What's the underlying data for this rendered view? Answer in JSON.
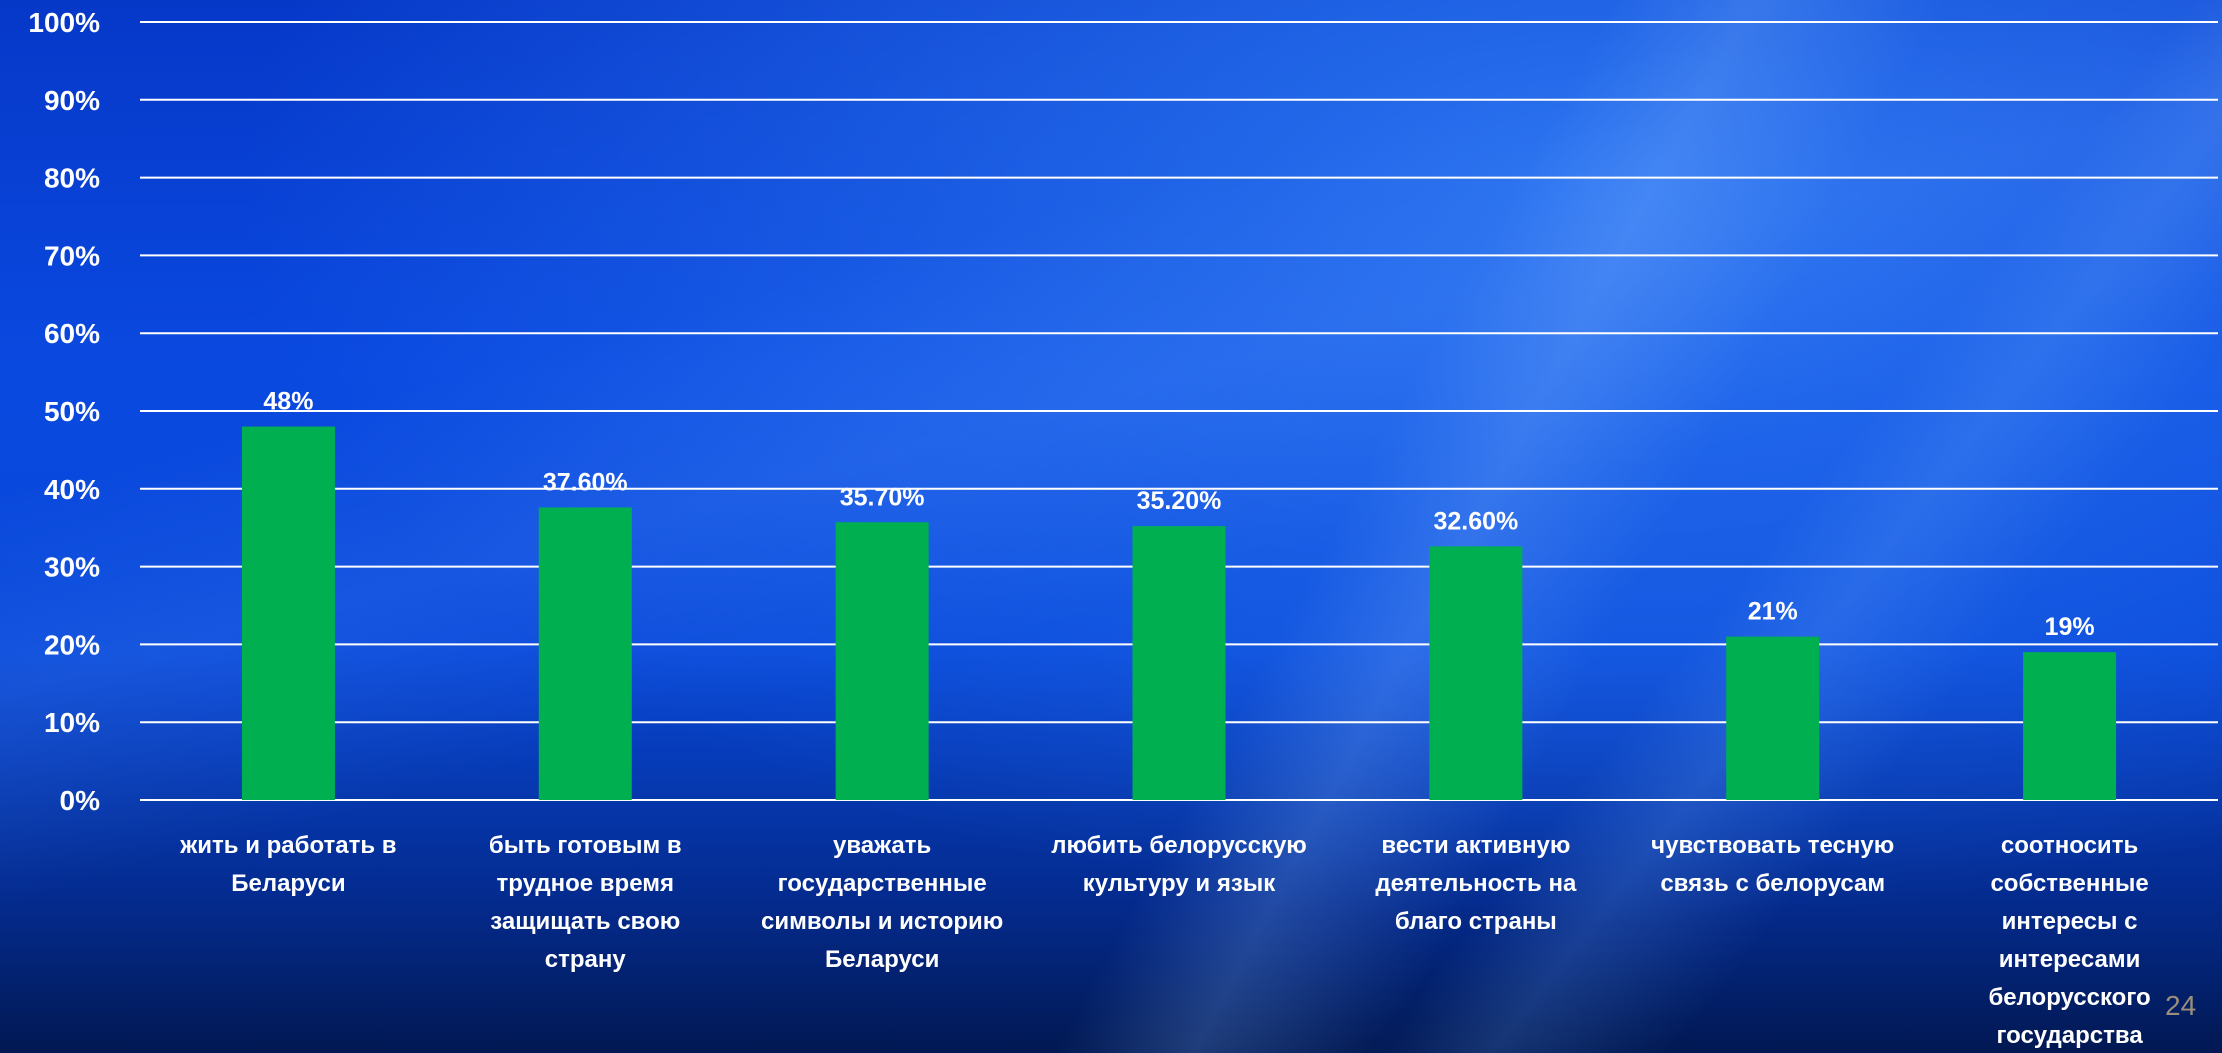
{
  "chart_data": {
    "type": "bar",
    "categories": [
      [
        "жить и работать в",
        "Беларуси"
      ],
      [
        "быть готовым в",
        "трудное время",
        "защищать свою",
        "страну"
      ],
      [
        "уважать",
        "государственные",
        "символы и историю",
        "Беларуси"
      ],
      [
        "любить белорусскую",
        "культуру и язык"
      ],
      [
        "вести активную",
        "деятельность на",
        "благо страны"
      ],
      [
        "чувствовать тесную",
        "связь с белорусам"
      ],
      [
        "соотносить",
        "собственные",
        "интересы с",
        "интересами",
        "белорусского",
        "государства"
      ]
    ],
    "values": [
      48,
      37.6,
      35.7,
      35.2,
      32.6,
      21,
      19
    ],
    "data_labels": [
      "48%",
      "37.60%",
      "35.70%",
      "35.20%",
      "32.60%",
      "21%",
      "19%"
    ],
    "y_ticks": [
      "0%",
      "10%",
      "20%",
      "30%",
      "40%",
      "50%",
      "60%",
      "70%",
      "80%",
      "90%",
      "100%"
    ],
    "ylim": [
      0,
      100
    ],
    "grid": true,
    "bar_color": "#00b050"
  },
  "page_number": "24"
}
